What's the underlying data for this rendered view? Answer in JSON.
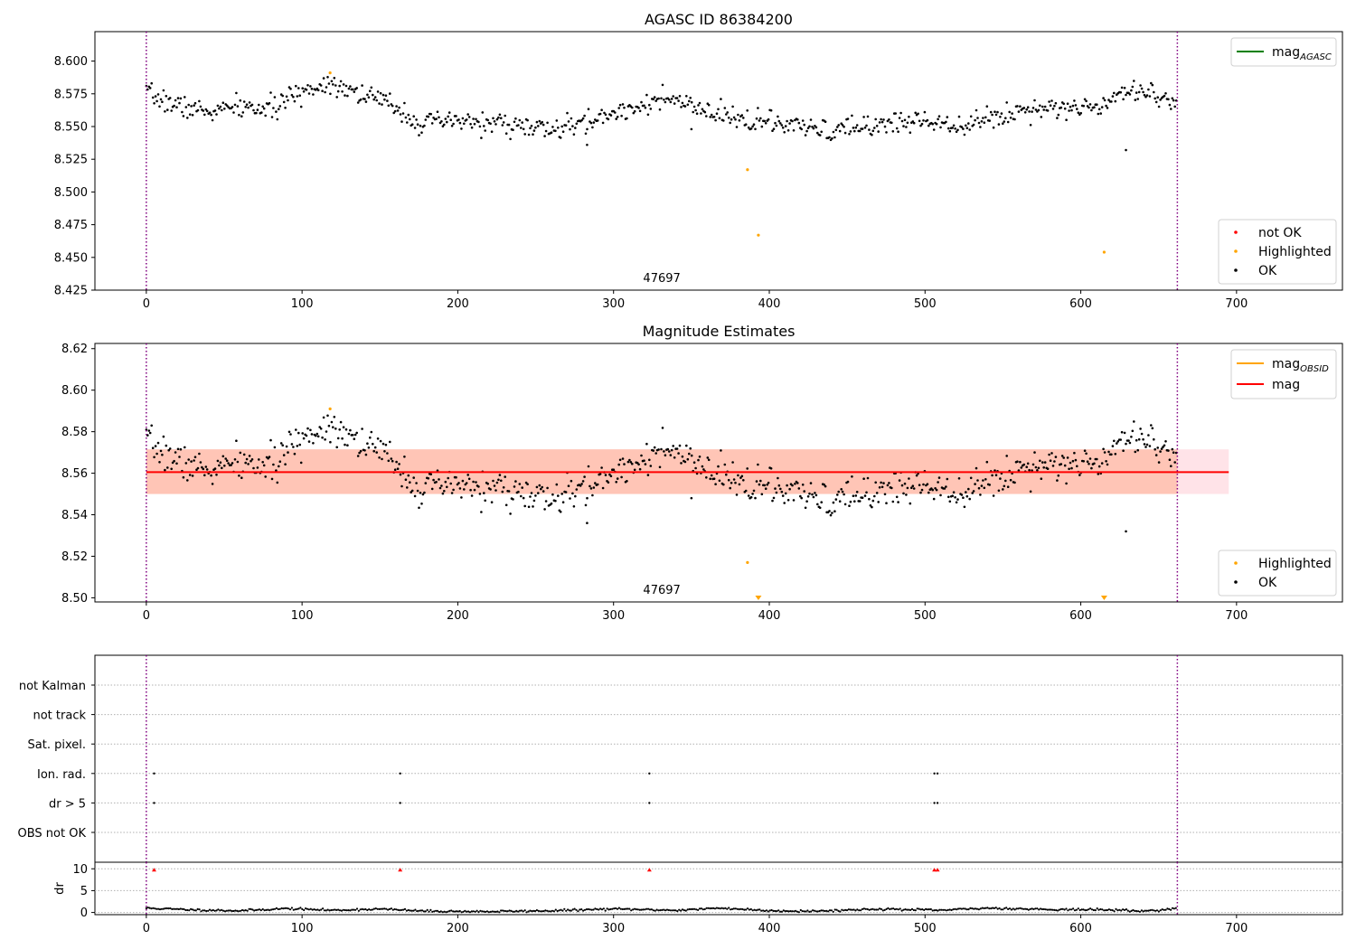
{
  "chart_data": [
    {
      "type": "scatter",
      "title": "AGASC ID 86384200",
      "xlim": [
        -33,
        768
      ],
      "ylim": [
        8.425,
        8.6225
      ],
      "xticks": [
        0,
        100,
        200,
        300,
        400,
        500,
        600,
        700
      ],
      "yticks": [
        8.425,
        8.45,
        8.475,
        8.5,
        8.525,
        8.55,
        8.575,
        8.6
      ],
      "ytick_labels": [
        "8.425",
        "8.450",
        "8.475",
        "8.500",
        "8.525",
        "8.550",
        "8.575",
        "8.600"
      ],
      "obs_boundaries": [
        0,
        662
      ],
      "obs_label": {
        "text": "47697",
        "x": 331
      },
      "series": [
        {
          "name": "OK",
          "color": "#000000",
          "trend": [
            [
              0,
              8.575
            ],
            [
              20,
              8.566
            ],
            [
              40,
              8.561
            ],
            [
              60,
              8.565
            ],
            [
              80,
              8.563
            ],
            [
              100,
              8.577
            ],
            [
              120,
              8.584
            ],
            [
              140,
              8.574
            ],
            [
              160,
              8.566
            ],
            [
              175,
              8.552
            ],
            [
              200,
              8.554
            ],
            [
              230,
              8.552
            ],
            [
              260,
              8.547
            ],
            [
              280,
              8.552
            ],
            [
              300,
              8.56
            ],
            [
              320,
              8.568
            ],
            [
              340,
              8.57
            ],
            [
              360,
              8.56
            ],
            [
              380,
              8.556
            ],
            [
              400,
              8.553
            ],
            [
              420,
              8.549
            ],
            [
              440,
              8.546
            ],
            [
              460,
              8.55
            ],
            [
              480,
              8.553
            ],
            [
              500,
              8.555
            ],
            [
              520,
              8.552
            ],
            [
              540,
              8.555
            ],
            [
              560,
              8.562
            ],
            [
              580,
              8.566
            ],
            [
              600,
              8.563
            ],
            [
              615,
              8.568
            ],
            [
              625,
              8.578
            ],
            [
              645,
              8.577
            ],
            [
              662,
              8.566
            ]
          ],
          "scatter": 0.0055,
          "seed": 7
        },
        {
          "name": "Highlighted",
          "color": "#ffa500",
          "points": [
            [
              118,
              8.591
            ],
            [
              386,
              8.517
            ],
            [
              393,
              8.467
            ],
            [
              615,
              8.454
            ]
          ]
        },
        {
          "name": "not OK",
          "color": "#ff0000",
          "points": []
        }
      ],
      "extra_points": [
        [
          629,
          8.532
        ],
        [
          283,
          8.536
        ],
        [
          350,
          8.548
        ]
      ],
      "legend_lines": [
        {
          "name": "mag",
          "sub": "AGASC",
          "color": "#008000"
        }
      ],
      "legend_points": [
        {
          "name": "not OK",
          "color": "#ff0000"
        },
        {
          "name": "Highlighted",
          "color": "#ffa500"
        },
        {
          "name": "OK",
          "color": "#000000"
        }
      ]
    },
    {
      "type": "scatter",
      "title": "Magnitude Estimates",
      "xlim": [
        -33,
        768
      ],
      "ylim": [
        8.498,
        8.6225
      ],
      "xticks": [
        0,
        100,
        200,
        300,
        400,
        500,
        600,
        700
      ],
      "yticks": [
        8.5,
        8.52,
        8.54,
        8.56,
        8.58,
        8.6,
        8.62
      ],
      "ytick_labels": [
        "8.50",
        "8.52",
        "8.54",
        "8.56",
        "8.58",
        "8.60",
        "8.62"
      ],
      "obs_boundaries": [
        0,
        662
      ],
      "obs_label": {
        "text": "47697",
        "x": 331
      },
      "mag_line": {
        "value": 8.5605,
        "color": "#ff0000",
        "x0": 0,
        "x1": 695
      },
      "mag_band": {
        "low": 8.55,
        "high": 8.5715,
        "color": "#ffc0cb",
        "x0": 0,
        "x1": 695
      },
      "obsid_band": {
        "low": 8.55,
        "high": 8.5715,
        "color": "#ffa07a",
        "x0": 0,
        "x1": 662
      },
      "series": [
        {
          "name": "OK",
          "color": "#000000",
          "trend": [
            [
              0,
              8.575
            ],
            [
              20,
              8.566
            ],
            [
              40,
              8.561
            ],
            [
              60,
              8.565
            ],
            [
              80,
              8.563
            ],
            [
              100,
              8.577
            ],
            [
              120,
              8.584
            ],
            [
              140,
              8.574
            ],
            [
              160,
              8.566
            ],
            [
              175,
              8.552
            ],
            [
              200,
              8.554
            ],
            [
              230,
              8.552
            ],
            [
              260,
              8.547
            ],
            [
              280,
              8.552
            ],
            [
              300,
              8.56
            ],
            [
              320,
              8.568
            ],
            [
              340,
              8.57
            ],
            [
              360,
              8.56
            ],
            [
              380,
              8.556
            ],
            [
              400,
              8.553
            ],
            [
              420,
              8.549
            ],
            [
              440,
              8.546
            ],
            [
              460,
              8.55
            ],
            [
              480,
              8.553
            ],
            [
              500,
              8.555
            ],
            [
              520,
              8.552
            ],
            [
              540,
              8.555
            ],
            [
              560,
              8.562
            ],
            [
              580,
              8.566
            ],
            [
              600,
              8.563
            ],
            [
              615,
              8.568
            ],
            [
              625,
              8.578
            ],
            [
              645,
              8.577
            ],
            [
              662,
              8.566
            ]
          ],
          "scatter": 0.0055,
          "seed": 7
        },
        {
          "name": "Highlighted",
          "color": "#ffa500",
          "points": [
            [
              118,
              8.591
            ],
            [
              386,
              8.517
            ]
          ]
        }
      ],
      "extra_points": [
        [
          629,
          8.532
        ],
        [
          283,
          8.536
        ],
        [
          350,
          8.548
        ]
      ],
      "offscale_markers": [
        393,
        615
      ],
      "legend_lines": [
        {
          "name": "mag",
          "sub": "OBSID",
          "color": "#ffa500"
        },
        {
          "name": "mag",
          "sub": "",
          "color": "#ff0000"
        }
      ],
      "legend_points": [
        {
          "name": "Highlighted",
          "color": "#ffa500"
        },
        {
          "name": "OK",
          "color": "#000000"
        }
      ]
    },
    {
      "type": "scatter",
      "title": "",
      "xlim": [
        -33,
        768
      ],
      "categories": [
        "not Kalman",
        "not track",
        "Sat. pixel.",
        "Ion. rad.",
        "dr > 5",
        "OBS not OK"
      ],
      "flag_points": {
        "Ion. rad.": [
          5,
          163,
          323,
          506,
          508
        ],
        "dr > 5": [
          5,
          163,
          323,
          506,
          508
        ]
      },
      "obs_boundaries": [
        0,
        662
      ]
    },
    {
      "type": "scatter",
      "title": "",
      "ylabel": "dr",
      "xlim": [
        -33,
        768
      ],
      "ylim": [
        -0.5,
        11.5
      ],
      "xticks": [
        0,
        100,
        200,
        300,
        400,
        500,
        600,
        700
      ],
      "yticks": [
        0,
        5,
        10
      ],
      "ytick_labels": [
        "0",
        "5",
        "10"
      ],
      "obs_boundaries": [
        0,
        662
      ],
      "dr_trend": [
        [
          0,
          1.0
        ],
        [
          30,
          0.6
        ],
        [
          60,
          0.4
        ],
        [
          90,
          0.9
        ],
        [
          120,
          0.5
        ],
        [
          150,
          0.8
        ],
        [
          180,
          0.3
        ],
        [
          220,
          0.2
        ],
        [
          260,
          0.4
        ],
        [
          300,
          0.8
        ],
        [
          340,
          0.5
        ],
        [
          370,
          1.0
        ],
        [
          400,
          0.4
        ],
        [
          430,
          0.3
        ],
        [
          470,
          0.8
        ],
        [
          510,
          0.5
        ],
        [
          540,
          1.0
        ],
        [
          580,
          0.7
        ],
        [
          620,
          0.6
        ],
        [
          640,
          0.3
        ],
        [
          662,
          0.9
        ]
      ],
      "dr_high": [
        5,
        163,
        323,
        506,
        508
      ]
    }
  ]
}
